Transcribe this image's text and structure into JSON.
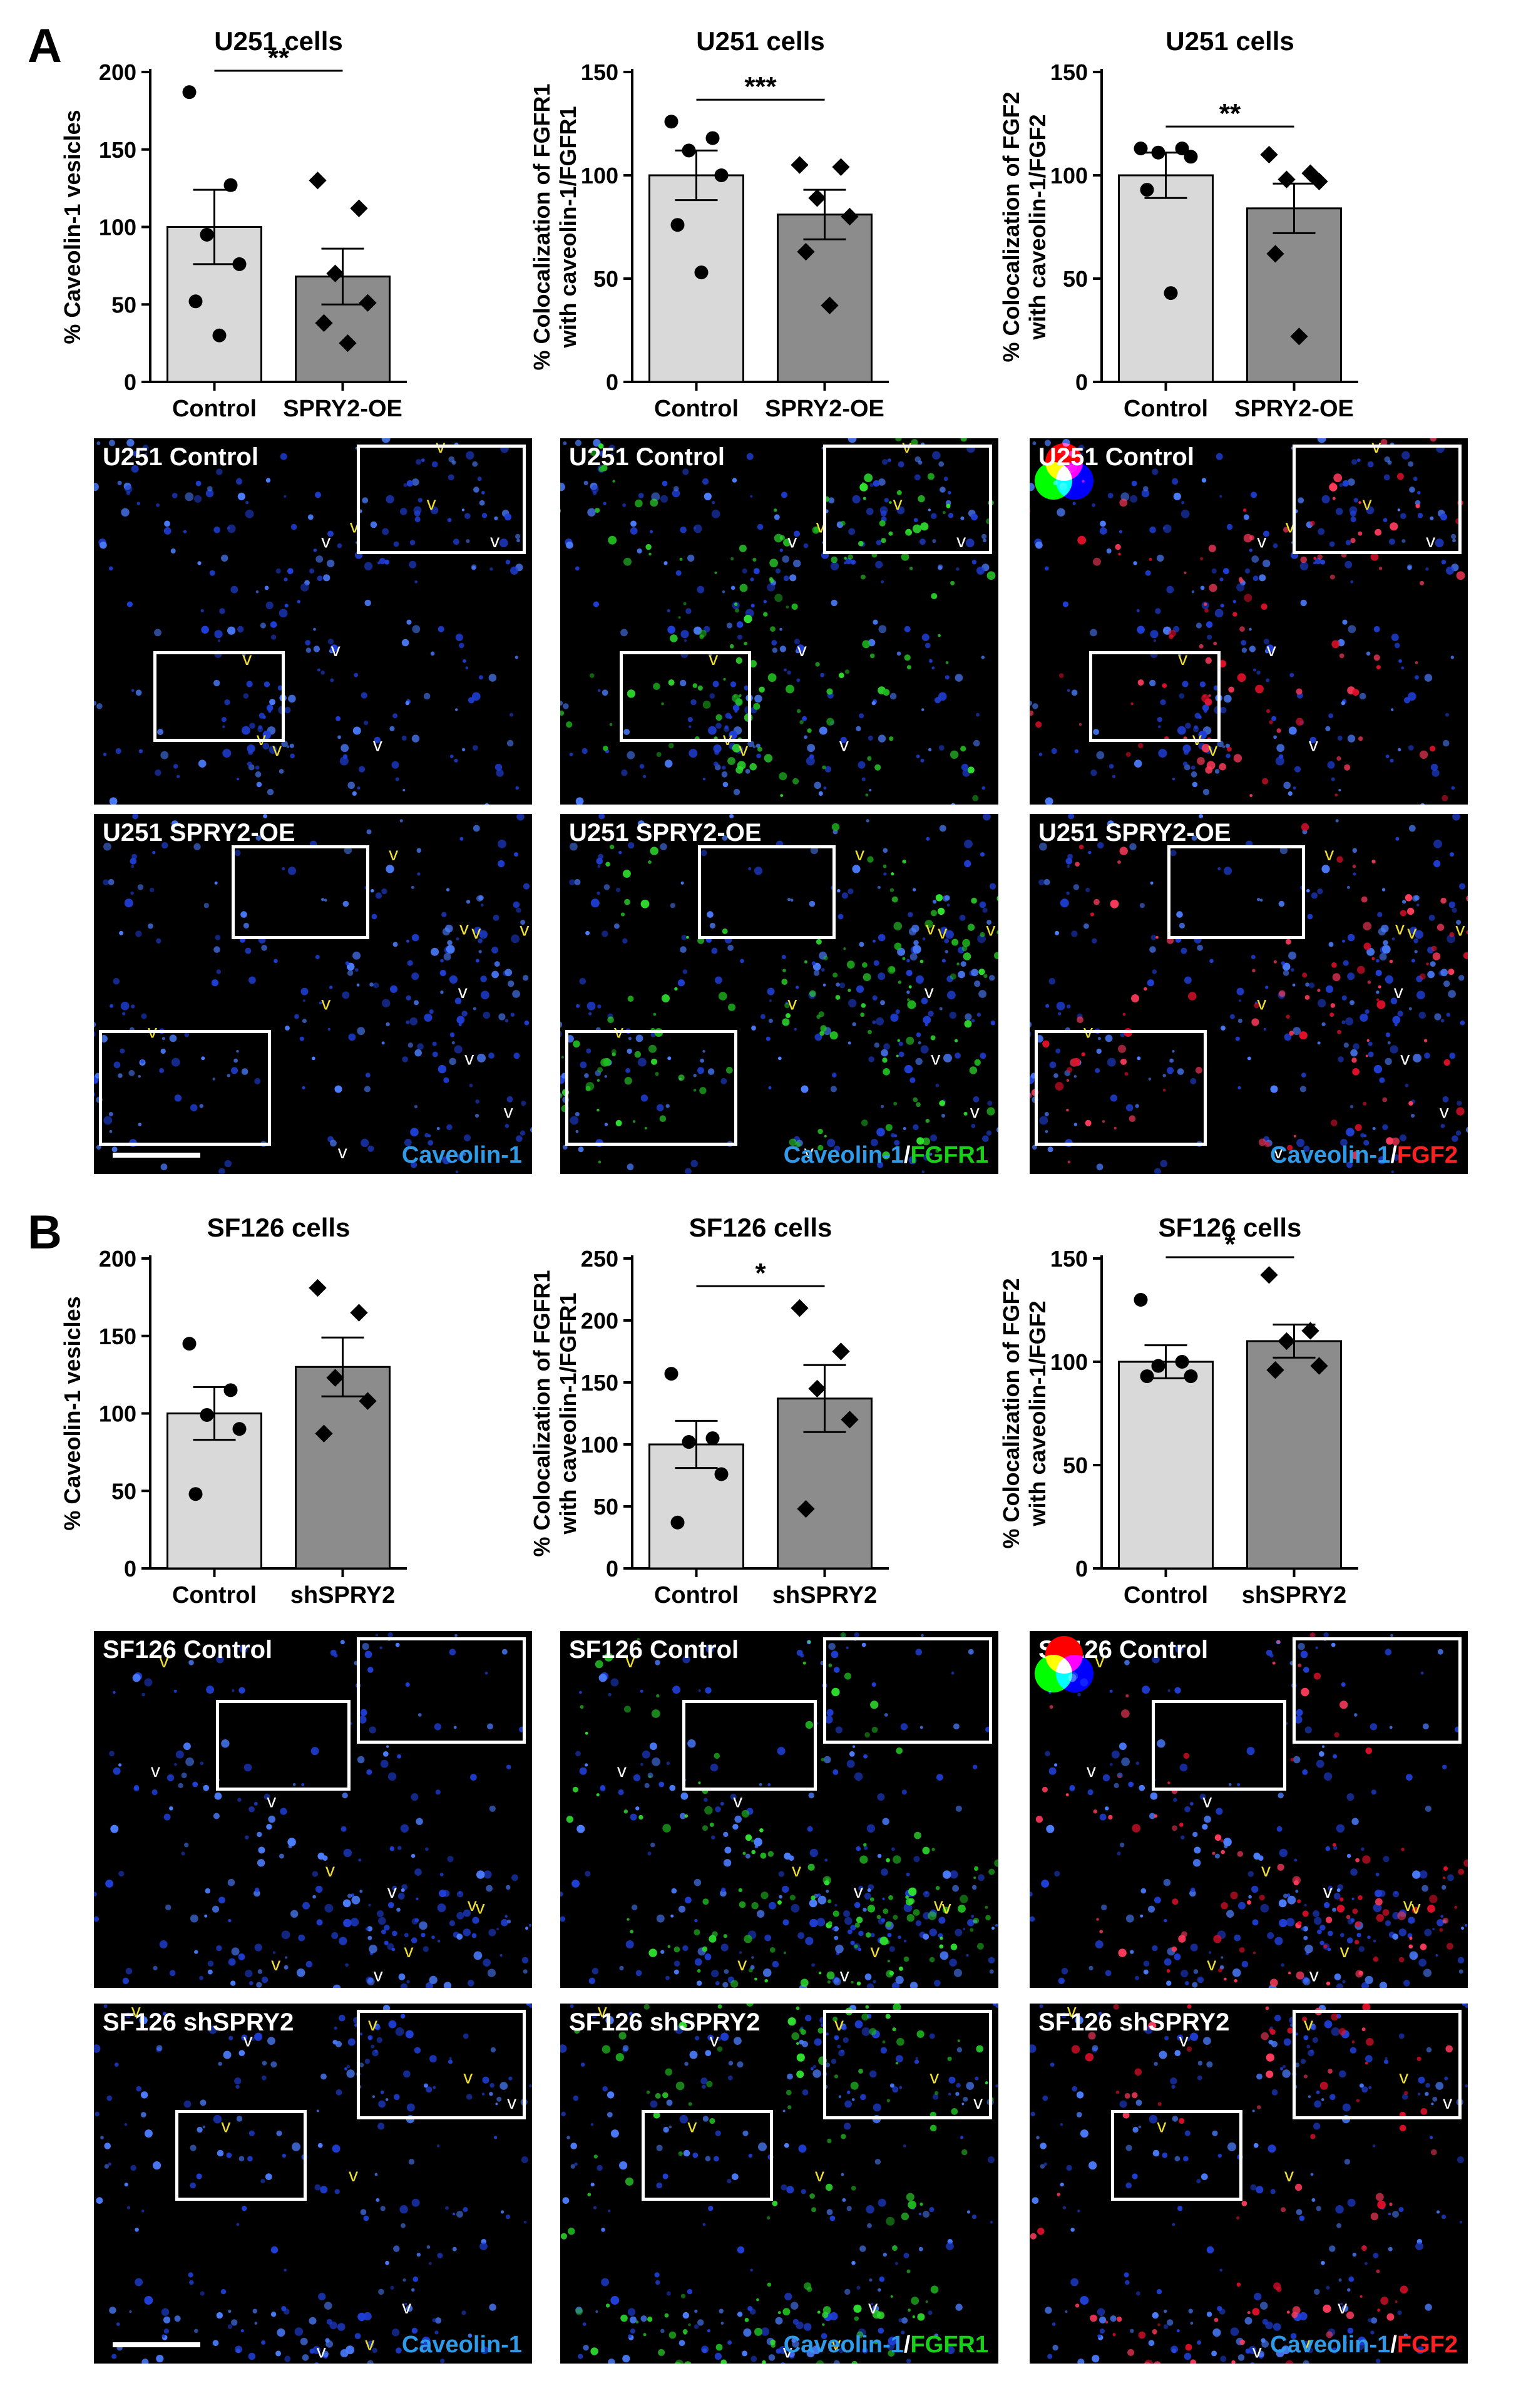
{
  "panels": {
    "a": "A",
    "b": "B"
  },
  "chart_data": [
    {
      "type": "bar",
      "title": "U251 cells",
      "ylabel": "% Caveolin-1 vesicles",
      "categories": [
        "Control",
        "SPRY2-OE"
      ],
      "values": [
        100,
        68
      ],
      "errors": [
        24,
        18
      ],
      "ylim": [
        0,
        200
      ],
      "yticks": [
        0,
        50,
        100,
        150,
        200
      ],
      "points": [
        [
          187,
          127,
          95,
          76,
          52,
          30
        ],
        [
          130,
          112,
          70,
          51,
          38,
          25
        ]
      ],
      "markers": [
        "circle",
        "diamond"
      ],
      "significance": "**"
    },
    {
      "type": "bar",
      "title": "U251 cells",
      "ylabel": "% Colocalization of FGFR1 with caveolin-1/FGFR1",
      "categories": [
        "Control",
        "SPRY2-OE"
      ],
      "values": [
        100,
        81
      ],
      "errors": [
        12,
        12
      ],
      "ylim": [
        0,
        150
      ],
      "yticks": [
        0,
        50,
        100,
        150
      ],
      "points": [
        [
          126,
          118,
          112,
          100,
          76,
          53
        ],
        [
          105,
          104,
          89,
          80,
          63,
          37
        ]
      ],
      "markers": [
        "circle",
        "diamond"
      ],
      "significance": "***"
    },
    {
      "type": "bar",
      "title": "U251 cells",
      "ylabel": "% Colocalization of FGF2 with caveolin-1/FGF2",
      "categories": [
        "Control",
        "SPRY2-OE"
      ],
      "values": [
        100,
        84
      ],
      "errors": [
        11,
        12
      ],
      "ylim": [
        0,
        150
      ],
      "yticks": [
        0,
        50,
        100,
        150
      ],
      "points": [
        [
          113,
          113,
          111,
          109,
          93,
          43
        ],
        [
          110,
          101,
          98,
          97,
          62,
          22
        ]
      ],
      "markers": [
        "circle",
        "diamond"
      ],
      "significance": "**"
    },
    {
      "type": "bar",
      "title": "SF126 cells",
      "ylabel": "% Caveolin-1 vesicles",
      "categories": [
        "Control",
        "shSPRY2"
      ],
      "values": [
        100,
        130
      ],
      "errors": [
        17,
        19
      ],
      "ylim": [
        0,
        200
      ],
      "yticks": [
        0,
        50,
        100,
        150,
        200
      ],
      "points": [
        [
          145,
          115,
          99,
          90,
          48
        ],
        [
          181,
          165,
          123,
          108,
          87
        ]
      ],
      "markers": [
        "circle",
        "diamond"
      ],
      "significance": ""
    },
    {
      "type": "bar",
      "title": "SF126 cells",
      "ylabel": "% Colocalization of FGFR1 with caveolin-1/FGFR1",
      "categories": [
        "Control",
        "shSPRY2"
      ],
      "values": [
        100,
        137
      ],
      "errors": [
        19,
        27
      ],
      "ylim": [
        0,
        250
      ],
      "yticks": [
        0,
        50,
        100,
        150,
        200,
        250
      ],
      "points": [
        [
          157,
          105,
          102,
          76,
          37
        ],
        [
          210,
          175,
          145,
          120,
          48
        ]
      ],
      "markers": [
        "circle",
        "diamond"
      ],
      "significance": "*"
    },
    {
      "type": "bar",
      "title": "SF126 cells",
      "ylabel": "% Colocalization of FGF2 with caveolin-1/FGF2",
      "categories": [
        "Control",
        "shSPRY2"
      ],
      "values": [
        100,
        110
      ],
      "errors": [
        8,
        8
      ],
      "ylim": [
        0,
        150
      ],
      "yticks": [
        0,
        50,
        100,
        150
      ],
      "points": [
        [
          130,
          100,
          98,
          93,
          93
        ],
        [
          142,
          115,
          110,
          98,
          96
        ]
      ],
      "markers": [
        "circle",
        "diamond"
      ],
      "significance": "*"
    }
  ],
  "micrographs": {
    "u251_control": "U251 Control",
    "u251_spry2": "U251 SPRY2-OE",
    "sf126_control": "SF126 Control",
    "sf126_shspry2": "SF126 shSPRY2",
    "caveolin": "Caveolin-1",
    "slash": "/",
    "fgfr1": "FGFR1",
    "fgf2": "FGF2"
  },
  "colors": {
    "control_bar": "#d9d9d9",
    "treatment_bar": "#8c8c8c",
    "caveolin_blue": "#2f9be8",
    "fgfr1_green": "#18d018",
    "fgf2_red": "#ff2020"
  }
}
